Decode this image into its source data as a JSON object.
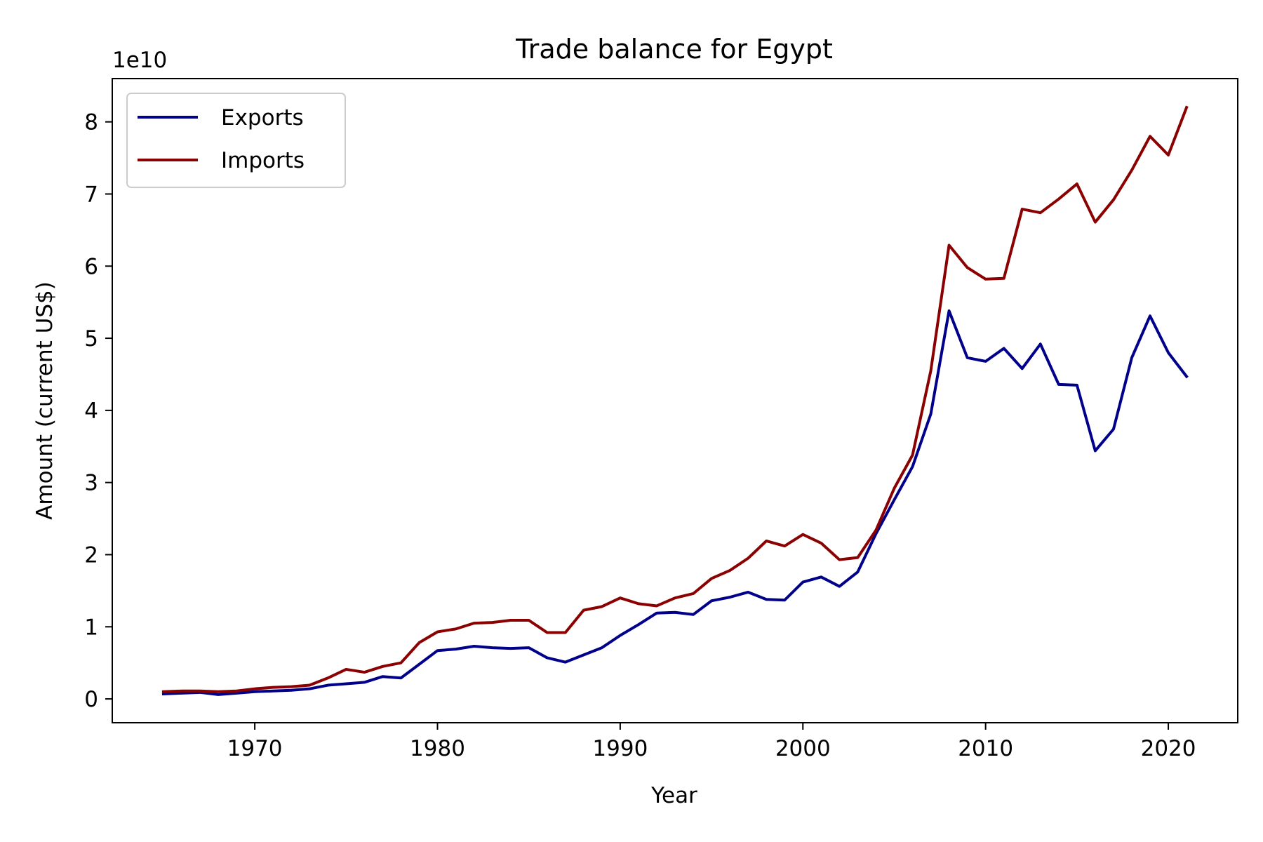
{
  "chart_data": {
    "type": "line",
    "title": "Trade balance for Egypt",
    "xlabel": "Year",
    "ylabel": "Amount (current US$)",
    "y_offset_label": "1e10",
    "y_scale": 10000000000.0,
    "xlim": [
      1962.2,
      1923.8
    ],
    "ylim": [
      -0.33,
      8.6
    ],
    "x_ticks": [
      1970,
      1980,
      1990,
      2000,
      2010,
      2020
    ],
    "y_ticks": [
      0,
      1,
      2,
      3,
      4,
      5,
      6,
      7,
      8
    ],
    "grid": false,
    "legend_position": "upper-left",
    "x": [
      1965,
      1966,
      1967,
      1968,
      1969,
      1970,
      1971,
      1972,
      1973,
      1974,
      1975,
      1976,
      1977,
      1978,
      1979,
      1980,
      1981,
      1982,
      1983,
      1984,
      1985,
      1986,
      1987,
      1988,
      1989,
      1990,
      1991,
      1992,
      1993,
      1994,
      1995,
      1996,
      1997,
      1998,
      1999,
      2000,
      2001,
      2002,
      2003,
      2004,
      2005,
      2006,
      2007,
      2008,
      2009,
      2010,
      2011,
      2012,
      2013,
      2014,
      2015,
      2016,
      2017,
      2018,
      2019,
      2020,
      2021
    ],
    "series": [
      {
        "name": "Exports",
        "color": "#00008b",
        "values": [
          0.07,
          0.08,
          0.09,
          0.06,
          0.08,
          0.1,
          0.11,
          0.12,
          0.14,
          0.19,
          0.21,
          0.23,
          0.31,
          0.29,
          0.48,
          0.67,
          0.69,
          0.73,
          0.71,
          0.7,
          0.71,
          0.57,
          0.51,
          0.61,
          0.71,
          0.88,
          1.03,
          1.19,
          1.2,
          1.17,
          1.36,
          1.41,
          1.48,
          1.38,
          1.37,
          1.62,
          1.69,
          1.56,
          1.76,
          2.29,
          2.76,
          3.22,
          3.95,
          5.38,
          4.73,
          4.68,
          4.86,
          4.58,
          4.92,
          4.36,
          4.35,
          3.44,
          3.74,
          4.73,
          5.31,
          4.8,
          4.47
        ]
      },
      {
        "name": "Imports",
        "color": "#8b0000",
        "values": [
          0.1,
          0.11,
          0.11,
          0.1,
          0.11,
          0.14,
          0.16,
          0.17,
          0.19,
          0.29,
          0.41,
          0.37,
          0.45,
          0.5,
          0.78,
          0.93,
          0.97,
          1.05,
          1.06,
          1.09,
          1.09,
          0.92,
          0.92,
          1.23,
          1.28,
          1.4,
          1.32,
          1.29,
          1.4,
          1.46,
          1.67,
          1.78,
          1.95,
          2.19,
          2.12,
          2.28,
          2.16,
          1.93,
          1.96,
          2.34,
          2.92,
          3.38,
          4.55,
          6.29,
          5.98,
          5.82,
          5.83,
          6.79,
          6.74,
          6.93,
          7.14,
          6.61,
          6.92,
          7.33,
          7.8,
          7.54,
          8.2
        ]
      }
    ]
  }
}
